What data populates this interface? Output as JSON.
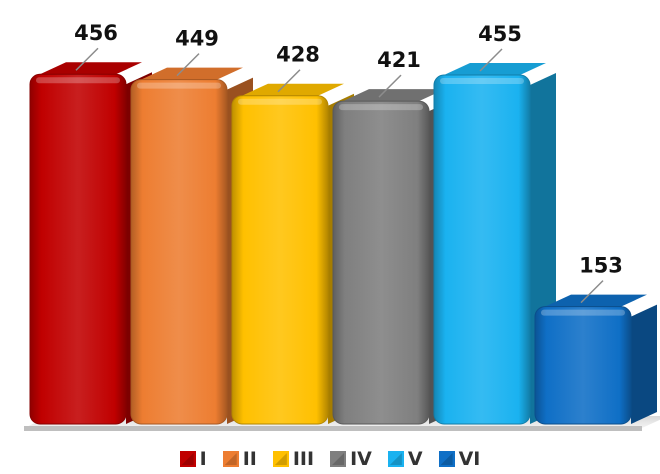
{
  "chart_data": {
    "type": "bar",
    "title": "",
    "xlabel": "",
    "ylabel": "",
    "categories": [
      "I",
      "II",
      "III",
      "IV",
      "V",
      "VI"
    ],
    "values": [
      456,
      449,
      428,
      421,
      455,
      153
    ],
    "ylim": [
      0,
      500
    ],
    "grid": false,
    "legend_position": "bottom",
    "colors": [
      "#c00000",
      "#ed7d31",
      "#ffc000",
      "#7f7f7f",
      "#1ab2f0",
      "#0f6fc6"
    ]
  }
}
